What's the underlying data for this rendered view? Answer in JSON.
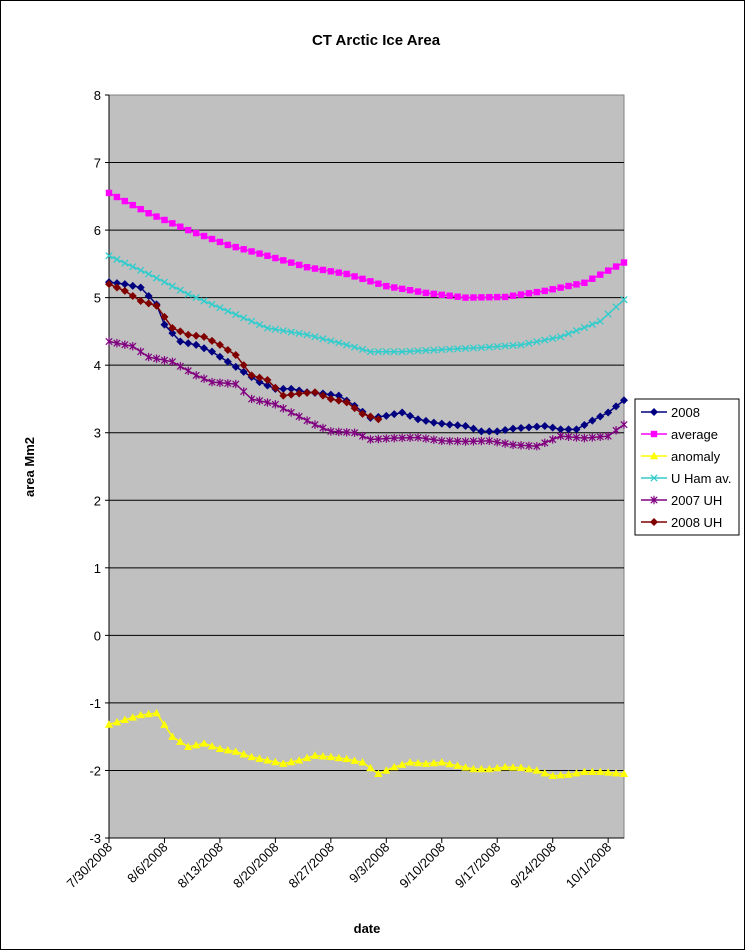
{
  "chart_data": {
    "type": "line",
    "title": "CT Arctic Ice Area",
    "xlabel": "date",
    "ylabel": "area Mm2",
    "ylim": [
      -3,
      8
    ],
    "y_ticks": [
      "-3",
      "-2",
      "-1",
      "0",
      "1",
      "2",
      "3",
      "4",
      "5",
      "6",
      "7",
      "8"
    ],
    "x_tick_labels": [
      "7/30/2008",
      "8/6/2008",
      "8/13/2008",
      "8/20/2008",
      "8/27/2008",
      "9/3/2008",
      "9/10/2008",
      "9/17/2008",
      "9/24/2008",
      "10/1/2008"
    ],
    "x_range": [
      "2008-07-30",
      "2008-10-03"
    ],
    "grid": "horizontal",
    "legend_position": "right",
    "background_color": "#c0c0c0",
    "series": [
      {
        "name": "2008",
        "color": "#000080",
        "marker": "diamond",
        "x": [
          "2008-07-30",
          "2008-08-01",
          "2008-08-03",
          "2008-08-05",
          "2008-08-06",
          "2008-08-08",
          "2008-08-10",
          "2008-08-12",
          "2008-08-14",
          "2008-08-16",
          "2008-08-18",
          "2008-08-20",
          "2008-08-22",
          "2008-08-24",
          "2008-08-26",
          "2008-08-28",
          "2008-08-30",
          "2008-09-01",
          "2008-09-03",
          "2008-09-05",
          "2008-09-07",
          "2008-09-09",
          "2008-09-11",
          "2008-09-13",
          "2008-09-15",
          "2008-09-17",
          "2008-09-19",
          "2008-09-21",
          "2008-09-23",
          "2008-09-25",
          "2008-09-27",
          "2008-09-29",
          "2008-10-01",
          "2008-10-03"
        ],
        "y": [
          5.23,
          5.2,
          5.15,
          4.9,
          4.6,
          4.35,
          4.3,
          4.2,
          4.05,
          3.9,
          3.75,
          3.65,
          3.65,
          3.6,
          3.58,
          3.55,
          3.4,
          3.22,
          3.25,
          3.3,
          3.2,
          3.15,
          3.12,
          3.1,
          3.02,
          3.02,
          3.06,
          3.08,
          3.1,
          3.05,
          3.05,
          3.18,
          3.3,
          3.48
        ]
      },
      {
        "name": "average",
        "color": "#ff00ff",
        "marker": "square",
        "x": [
          "2008-07-30",
          "2008-08-04",
          "2008-08-09",
          "2008-08-14",
          "2008-08-19",
          "2008-08-24",
          "2008-08-29",
          "2008-09-03",
          "2008-09-08",
          "2008-09-13",
          "2008-09-18",
          "2008-09-23",
          "2008-09-28",
          "2008-10-03"
        ],
        "y": [
          6.55,
          6.25,
          6.0,
          5.78,
          5.62,
          5.45,
          5.35,
          5.17,
          5.07,
          5.0,
          5.01,
          5.1,
          5.22,
          5.52
        ]
      },
      {
        "name": "anomaly",
        "color": "#ffff00",
        "marker": "triangle",
        "x": [
          "2008-07-30",
          "2008-08-01",
          "2008-08-03",
          "2008-08-05",
          "2008-08-07",
          "2008-08-09",
          "2008-08-11",
          "2008-08-13",
          "2008-08-15",
          "2008-08-17",
          "2008-08-19",
          "2008-08-21",
          "2008-08-23",
          "2008-08-25",
          "2008-08-27",
          "2008-08-29",
          "2008-08-31",
          "2008-09-02",
          "2008-09-04",
          "2008-09-06",
          "2008-09-08",
          "2008-09-10",
          "2008-09-12",
          "2008-09-14",
          "2008-09-16",
          "2008-09-18",
          "2008-09-20",
          "2008-09-22",
          "2008-09-24",
          "2008-09-26",
          "2008-09-28",
          "2008-09-30",
          "2008-10-03"
        ],
        "y": [
          -1.32,
          -1.25,
          -1.18,
          -1.15,
          -1.5,
          -1.65,
          -1.6,
          -1.68,
          -1.72,
          -1.8,
          -1.85,
          -1.9,
          -1.85,
          -1.78,
          -1.8,
          -1.83,
          -1.88,
          -2.05,
          -1.95,
          -1.88,
          -1.9,
          -1.88,
          -1.93,
          -1.98,
          -1.98,
          -1.95,
          -1.96,
          -2.0,
          -2.08,
          -2.06,
          -2.02,
          -2.02,
          -2.05
        ]
      },
      {
        "name": "U Ham av.",
        "color": "#33cccc",
        "marker": "x",
        "x": [
          "2008-07-30",
          "2008-08-04",
          "2008-08-09",
          "2008-08-14",
          "2008-08-19",
          "2008-08-24",
          "2008-08-29",
          "2008-09-01",
          "2008-09-05",
          "2008-09-10",
          "2008-09-15",
          "2008-09-20",
          "2008-09-25",
          "2008-09-30",
          "2008-10-03"
        ],
        "y": [
          5.62,
          5.35,
          5.05,
          4.8,
          4.55,
          4.45,
          4.3,
          4.2,
          4.2,
          4.23,
          4.26,
          4.3,
          4.42,
          4.65,
          4.97
        ]
      },
      {
        "name": "2007 UH",
        "color": "#800080",
        "marker": "star",
        "x": [
          "2008-07-30",
          "2008-08-02",
          "2008-08-04",
          "2008-08-07",
          "2008-08-10",
          "2008-08-12",
          "2008-08-15",
          "2008-08-17",
          "2008-08-20",
          "2008-08-22",
          "2008-08-25",
          "2008-08-27",
          "2008-08-30",
          "2008-09-01",
          "2008-09-04",
          "2008-09-07",
          "2008-09-10",
          "2008-09-13",
          "2008-09-16",
          "2008-09-19",
          "2008-09-22",
          "2008-09-25",
          "2008-09-28",
          "2008-10-01",
          "2008-10-03"
        ],
        "y": [
          4.35,
          4.28,
          4.12,
          4.05,
          3.85,
          3.75,
          3.72,
          3.5,
          3.42,
          3.3,
          3.12,
          3.02,
          3.0,
          2.9,
          2.92,
          2.93,
          2.88,
          2.87,
          2.88,
          2.82,
          2.8,
          2.95,
          2.92,
          2.95,
          3.12
        ]
      },
      {
        "name": "2008 UH",
        "color": "#800000",
        "marker": "diamond",
        "x": [
          "2008-07-30",
          "2008-08-01",
          "2008-08-03",
          "2008-08-05",
          "2008-08-07",
          "2008-08-09",
          "2008-08-11",
          "2008-08-13",
          "2008-08-15",
          "2008-08-17",
          "2008-08-19",
          "2008-08-21",
          "2008-08-23",
          "2008-08-25",
          "2008-08-27",
          "2008-08-29",
          "2008-08-31",
          "2008-09-02"
        ],
        "y": [
          5.2,
          5.1,
          4.95,
          4.88,
          4.55,
          4.45,
          4.42,
          4.3,
          4.15,
          3.85,
          3.78,
          3.55,
          3.58,
          3.6,
          3.5,
          3.45,
          3.28,
          3.2
        ]
      }
    ]
  }
}
